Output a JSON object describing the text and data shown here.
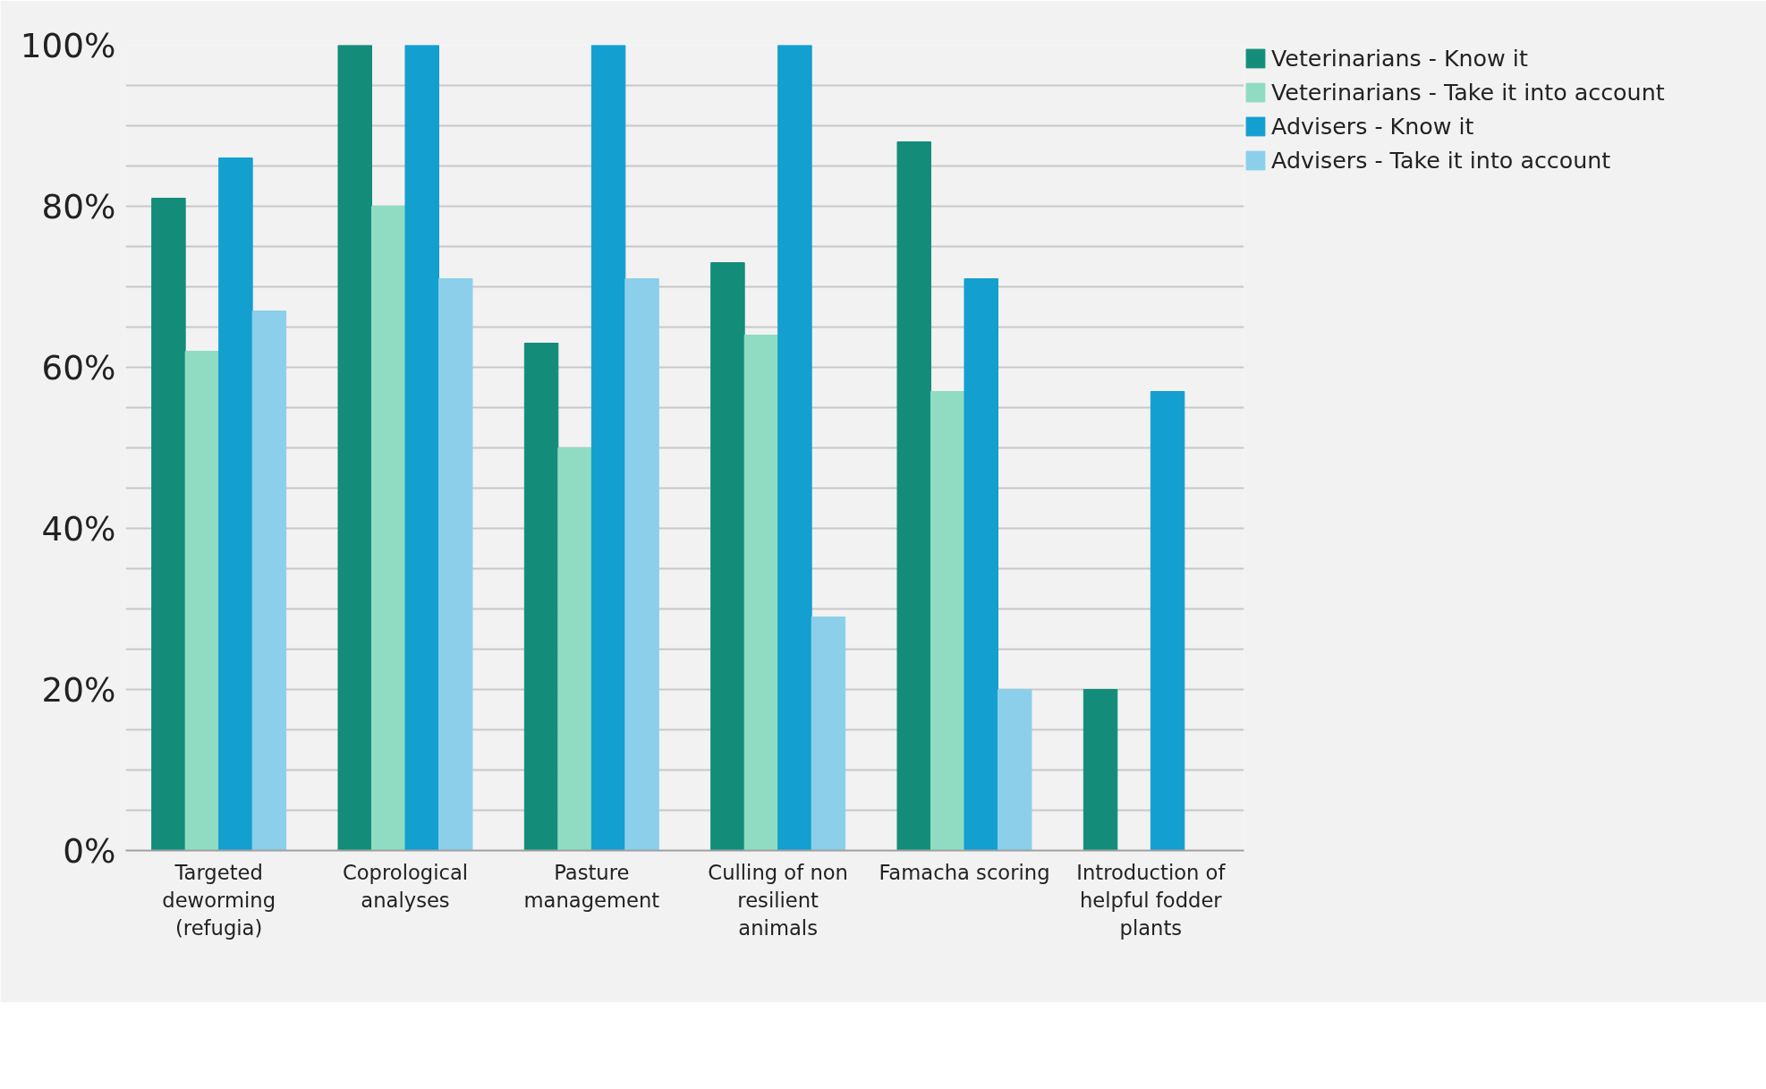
{
  "chart_data": {
    "type": "bar",
    "categories": [
      "Targeted deworming (refugia)",
      "Coprological analyses",
      "Pasture management",
      "Culling of non resilient animals",
      "Famacha scoring",
      "Introduction of helpful fodder plants"
    ],
    "series": [
      {
        "name": "Veterinarians - Know it",
        "color": "#138d7a",
        "values": [
          81,
          100,
          63,
          73,
          88,
          20
        ]
      },
      {
        "name": "Veterinarians - Take it into account",
        "color": "#8fdcc2",
        "values": [
          62,
          80,
          50,
          64,
          57,
          null
        ]
      },
      {
        "name": "Advisers - Know it",
        "color": "#139fcf",
        "values": [
          86,
          100,
          100,
          100,
          71,
          57
        ]
      },
      {
        "name": "Advisers - Take it into account",
        "color": "#8ccfea",
        "values": [
          67,
          71,
          71,
          29,
          20,
          null
        ]
      }
    ],
    "ylim": [
      0,
      100
    ],
    "yticks": [
      {
        "value": 0,
        "label": "0%"
      },
      {
        "value": 5,
        "label": null
      },
      {
        "value": 10,
        "label": null
      },
      {
        "value": 15,
        "label": null
      },
      {
        "value": 20,
        "label": "20%"
      },
      {
        "value": 25,
        "label": null
      },
      {
        "value": 30,
        "label": null
      },
      {
        "value": 35,
        "label": null
      },
      {
        "value": 40,
        "label": "40%"
      },
      {
        "value": 45,
        "label": null
      },
      {
        "value": 50,
        "label": null
      },
      {
        "value": 55,
        "label": null
      },
      {
        "value": 60,
        "label": "60%"
      },
      {
        "value": 65,
        "label": null
      },
      {
        "value": 70,
        "label": null
      },
      {
        "value": 75,
        "label": null
      },
      {
        "value": 80,
        "label": "80%"
      },
      {
        "value": 85,
        "label": null
      },
      {
        "value": 90,
        "label": null
      },
      {
        "value": 95,
        "label": null
      },
      {
        "value": 100,
        "label": "100%"
      }
    ],
    "grid": "y",
    "legend": "top right"
  }
}
